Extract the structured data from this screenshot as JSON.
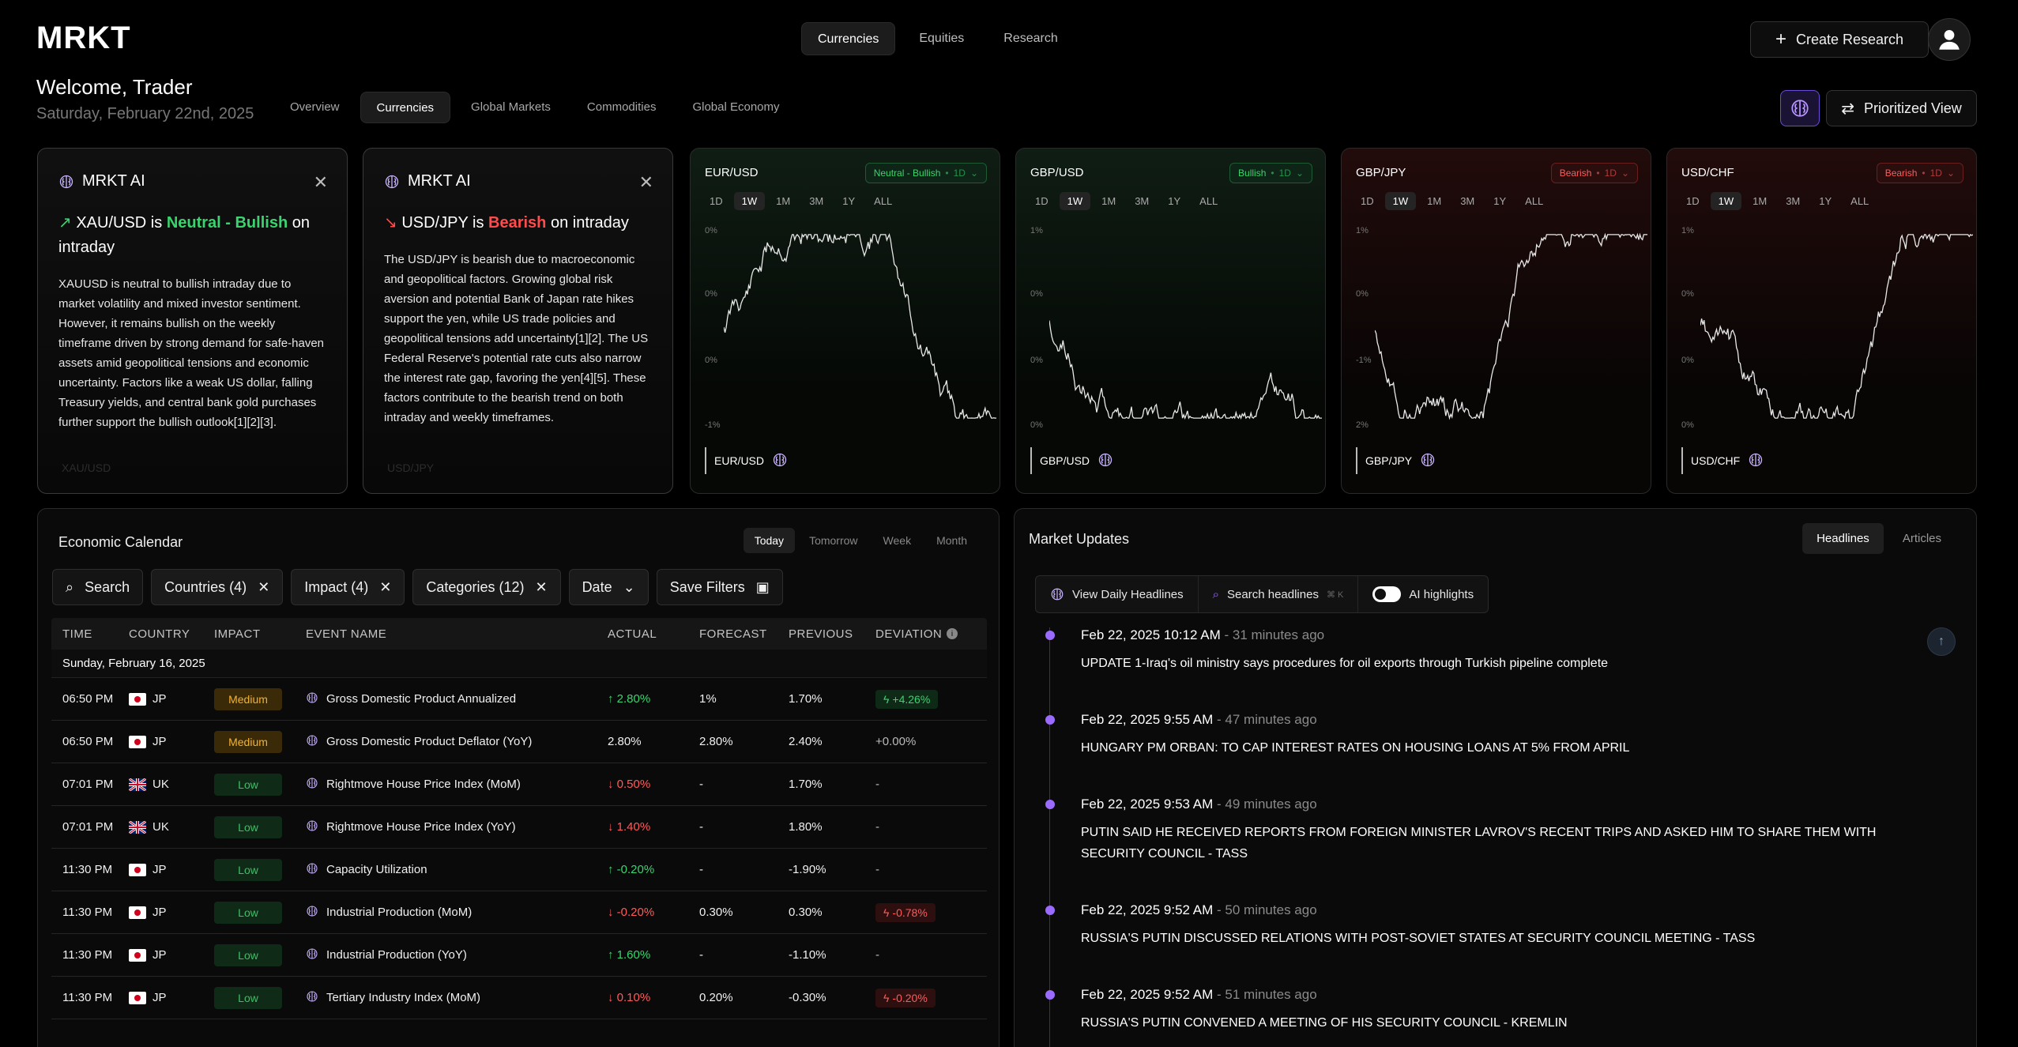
{
  "app": {
    "logo": "MRKT"
  },
  "topnav": [
    "Currencies",
    "Equities",
    "Research"
  ],
  "actions": {
    "create": "Create Research",
    "prioritized": "Prioritized View"
  },
  "welcome": {
    "title": "Welcome, Trader",
    "date": "Saturday, February 22nd, 2025"
  },
  "subnav": [
    "Overview",
    "Currencies",
    "Global Markets",
    "Commodities",
    "Global Economy"
  ],
  "ai_cards": [
    {
      "brand": "MRKT AI",
      "pair": "XAU/USD",
      "connector": "is",
      "sentiment": "Neutral - Bullish",
      "suffix": "on intraday",
      "body": "XAUUSD is neutral to bullish intraday due to market volatility and mixed investor sentiment. However, it remains bullish on the weekly timeframe driven by strong demand for safe-haven assets amid geopolitical tensions and economic uncertainty. Factors like a weak US dollar, falling Treasury yields, and central bank gold purchases further support the bullish outlook[1][2][3].",
      "footer": "XAU/USD"
    },
    {
      "brand": "MRKT AI",
      "pair": "USD/JPY",
      "connector": "is",
      "sentiment": "Bearish",
      "suffix": "on intraday",
      "body": "The USD/JPY is bearish due to macroeconomic and geopolitical factors. Growing global risk aversion and potential Bank of Japan rate hikes support the yen, while US trade policies and geopolitical tensions add uncertainty[1][2]. The US Federal Reserve's potential rate cuts also narrow the interest rate gap, favoring the yen[4][5]. These factors contribute to the bearish trend on both intraday and weekly timeframes.",
      "footer": "USD/JPY"
    }
  ],
  "ranges": [
    "1D",
    "1W",
    "1M",
    "3M",
    "1Y",
    "ALL"
  ],
  "currency_cards": [
    {
      "pair": "EUR/USD",
      "badge": "Neutral - Bullish",
      "badge_tf": "1D",
      "tone": "green",
      "y_labels": [
        "0%",
        "0%",
        "0%",
        "-1%"
      ]
    },
    {
      "pair": "GBP/USD",
      "badge": "Bullish",
      "badge_tf": "1D",
      "tone": "green",
      "y_labels": [
        "1%",
        "0%",
        "0%",
        "0%"
      ]
    },
    {
      "pair": "GBP/JPY",
      "badge": "Bearish",
      "badge_tf": "1D",
      "tone": "red",
      "y_labels": [
        "1%",
        "0%",
        "-1%",
        "2%"
      ]
    },
    {
      "pair": "USD/CHF",
      "badge": "Bearish",
      "badge_tf": "1D",
      "tone": "red",
      "y_labels": [
        "1%",
        "0%",
        "0%",
        "0%"
      ]
    }
  ],
  "economic_calendar": {
    "title": "Economic Calendar",
    "tabs": [
      "Today",
      "Tomorrow",
      "Week",
      "Month"
    ],
    "filters": {
      "search": "Search",
      "countries": "Countries (4)",
      "impact": "Impact (4)",
      "categories": "Categories (12)",
      "date": "Date",
      "save": "Save Filters"
    },
    "columns": [
      "TIME",
      "COUNTRY",
      "IMPACT",
      "EVENT NAME",
      "ACTUAL",
      "FORECAST",
      "PREVIOUS",
      "DEVIATION"
    ],
    "group": "Sunday, February 16, 2025",
    "rows": [
      {
        "time": "06:50 PM",
        "flag": "jp",
        "country": "JP",
        "impact": "Medium",
        "event": "Gross Domestic Product Annualized",
        "actual": "2.80%",
        "actual_dir": "up",
        "forecast": "1%",
        "previous": "1.70%",
        "deviation": "+4.26%",
        "dev_type": "pos"
      },
      {
        "time": "06:50 PM",
        "flag": "jp",
        "country": "JP",
        "impact": "Medium",
        "event": "Gross Domestic Product Deflator (YoY)",
        "actual": "2.80%",
        "actual_dir": "none",
        "forecast": "2.80%",
        "previous": "2.40%",
        "deviation": "+0.00%",
        "dev_type": "plain"
      },
      {
        "time": "07:01 PM",
        "flag": "uk",
        "country": "UK",
        "impact": "Low",
        "event": "Rightmove House Price Index (MoM)",
        "actual": "0.50%",
        "actual_dir": "down",
        "forecast": "-",
        "previous": "1.70%",
        "deviation": "-",
        "dev_type": "plain"
      },
      {
        "time": "07:01 PM",
        "flag": "uk",
        "country": "UK",
        "impact": "Low",
        "event": "Rightmove House Price Index (YoY)",
        "actual": "1.40%",
        "actual_dir": "down",
        "forecast": "-",
        "previous": "1.80%",
        "deviation": "-",
        "dev_type": "plain"
      },
      {
        "time": "11:30 PM",
        "flag": "jp",
        "country": "JP",
        "impact": "Low",
        "event": "Capacity Utilization",
        "actual": "-0.20%",
        "actual_dir": "up",
        "forecast": "-",
        "previous": "-1.90%",
        "deviation": "-",
        "dev_type": "plain"
      },
      {
        "time": "11:30 PM",
        "flag": "jp",
        "country": "JP",
        "impact": "Low",
        "event": "Industrial Production (MoM)",
        "actual": "-0.20%",
        "actual_dir": "down",
        "forecast": "0.30%",
        "previous": "0.30%",
        "deviation": "-0.78%",
        "dev_type": "neg"
      },
      {
        "time": "11:30 PM",
        "flag": "jp",
        "country": "JP",
        "impact": "Low",
        "event": "Industrial Production (YoY)",
        "actual": "1.60%",
        "actual_dir": "up",
        "forecast": "-",
        "previous": "-1.10%",
        "deviation": "-",
        "dev_type": "plain"
      },
      {
        "time": "11:30 PM",
        "flag": "jp",
        "country": "JP",
        "impact": "Low",
        "event": "Tertiary Industry Index (MoM)",
        "actual": "0.10%",
        "actual_dir": "down",
        "forecast": "0.20%",
        "previous": "-0.30%",
        "deviation": "-0.20%",
        "dev_type": "neg"
      }
    ]
  },
  "market_updates": {
    "title": "Market Updates",
    "tabs": [
      "Headlines",
      "Articles"
    ],
    "tools": {
      "daily": "View Daily Headlines",
      "search": "Search headlines",
      "shortcut": "⌘ K",
      "highlights": "AI highlights"
    },
    "items": [
      {
        "time": "Feb 22, 2025 10:12 AM",
        "ago": "31 minutes ago",
        "headline": "UPDATE 1-Iraq's oil ministry says procedures for oil exports through Turkish pipeline complete"
      },
      {
        "time": "Feb 22, 2025 9:55 AM",
        "ago": "47 minutes ago",
        "headline": "HUNGARY PM ORBAN: TO CAP INTEREST RATES ON HOUSING LOANS AT 5% FROM APRIL"
      },
      {
        "time": "Feb 22, 2025 9:53 AM",
        "ago": "49 minutes ago",
        "headline": "PUTIN SAID HE RECEIVED REPORTS FROM FOREIGN MINISTER LAVROV'S RECENT TRIPS AND ASKED HIM TO SHARE THEM WITH SECURITY COUNCIL - TASS"
      },
      {
        "time": "Feb 22, 2025 9:52 AM",
        "ago": "50 minutes ago",
        "headline": "RUSSIA'S PUTIN DISCUSSED RELATIONS WITH POST-SOVIET STATES AT SECURITY COUNCIL MEETING - TASS"
      },
      {
        "time": "Feb 22, 2025 9:52 AM",
        "ago": "51 minutes ago",
        "headline": "RUSSIA'S PUTIN CONVENED A MEETING OF HIS SECURITY COUNCIL - KREMLIN"
      }
    ]
  },
  "colors": {
    "accent": "#9b6bff",
    "bull": "#3ad46f",
    "bear": "#ff4b4b",
    "medium": "#f2b233"
  }
}
